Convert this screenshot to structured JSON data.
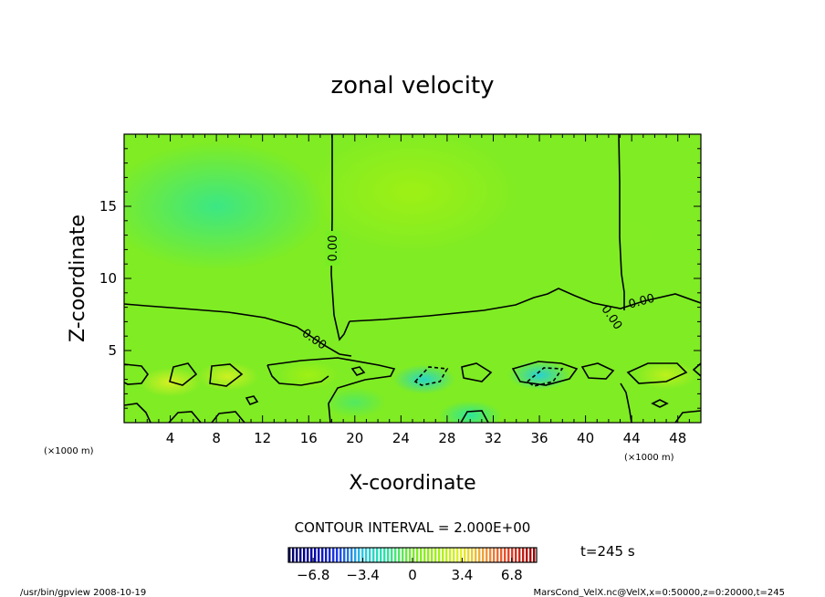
{
  "chart_data": {
    "type": "heatmap",
    "title": "zonal velocity",
    "xlabel": "X-coordinate",
    "ylabel": "Z-coordinate",
    "x_unit": "(×1000 m)",
    "y_unit": "(×1000 m)",
    "xlim": [
      0,
      50
    ],
    "ylim": [
      0,
      20
    ],
    "x_ticks": [
      "4",
      "8",
      "12",
      "16",
      "20",
      "24",
      "28",
      "32",
      "36",
      "40",
      "44",
      "48"
    ],
    "y_ticks": [
      "5",
      "10",
      "15"
    ],
    "contour_interval_text": "CONTOUR INTERVAL = 2.000E+00",
    "contour_label": "0.00",
    "time_label": "t=245 s",
    "colorbar": {
      "range": [
        -8.5,
        8.5
      ],
      "tick_labels": [
        "−6.8",
        "−3.4",
        "0",
        "3.4",
        "6.8"
      ],
      "tick_values": [
        -6.8,
        -3.4,
        0,
        3.4,
        6.8
      ]
    },
    "footer_left": "/usr/bin/gpview  2008-10-19",
    "footer_right": "MarsCond_VelX.nc@VelX,x=0:50000,z=0:20000,t=245",
    "field_features": [
      {
        "x": 25,
        "z": 16,
        "value": 1.6
      },
      {
        "x": 8,
        "z": 15,
        "value": -1.3
      },
      {
        "x": 44,
        "z": 13,
        "value": 0.4
      },
      {
        "x": 4,
        "z": 2.8,
        "value": 3.0
      },
      {
        "x": 9,
        "z": 3.2,
        "value": 2.8
      },
      {
        "x": 16,
        "z": 3.3,
        "value": 1.7
      },
      {
        "x": 26,
        "z": 3.0,
        "value": -2.6
      },
      {
        "x": 36,
        "z": 3.3,
        "value": -2.9
      },
      {
        "x": 47,
        "z": 3.3,
        "value": 2.4
      },
      {
        "x": 30,
        "z": 0.5,
        "value": -1.6
      },
      {
        "x": 20,
        "z": 1.4,
        "value": -0.8
      }
    ]
  }
}
